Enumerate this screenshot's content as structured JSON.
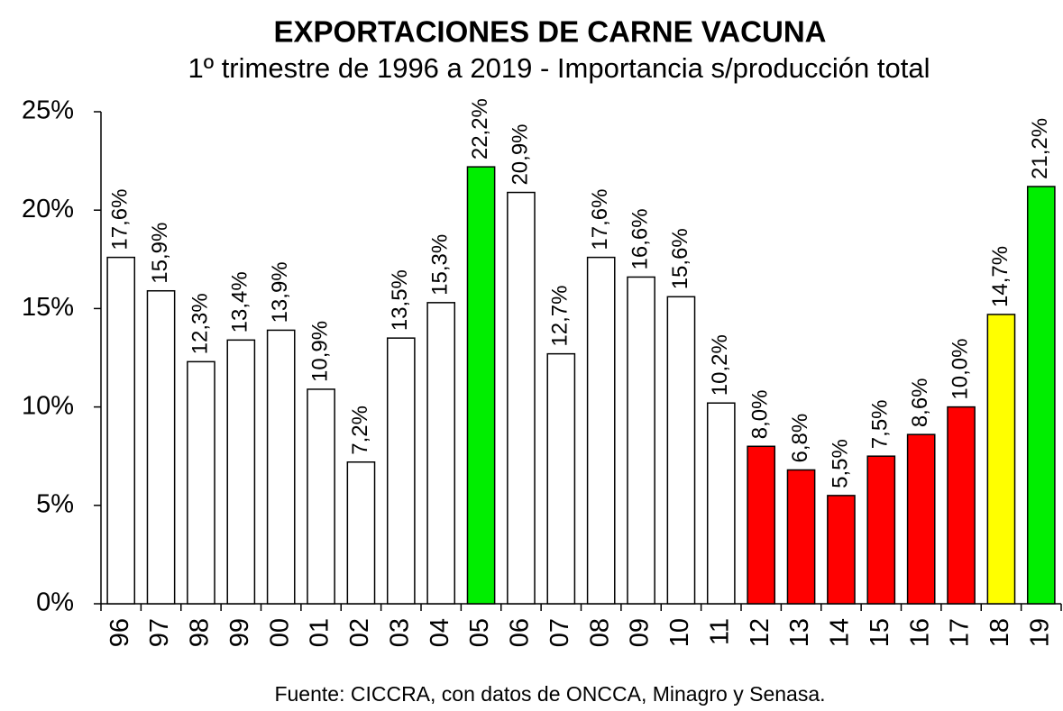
{
  "chart_data": {
    "type": "bar",
    "title": "EXPORTACIONES DE CARNE VACUNA",
    "subtitle": "1º trimestre de 1996 a 2019 - Importancia s/producción total",
    "source": "Fuente: CICCRA, con datos de ONCCA, Minagro y Senasa.",
    "categories": [
      "96",
      "97",
      "98",
      "99",
      "00",
      "01",
      "02",
      "03",
      "04",
      "05",
      "06",
      "07",
      "08",
      "09",
      "10",
      "11",
      "12",
      "13",
      "14",
      "15",
      "16",
      "17",
      "18",
      "19"
    ],
    "values": [
      17.6,
      15.9,
      12.3,
      13.4,
      13.9,
      10.9,
      7.2,
      13.5,
      15.3,
      22.2,
      20.9,
      12.7,
      17.6,
      16.6,
      15.6,
      10.2,
      8.0,
      6.8,
      5.5,
      7.5,
      8.6,
      10.0,
      14.7,
      21.2
    ],
    "value_labels": [
      "17,6%",
      "15,9%",
      "12,3%",
      "13,4%",
      "13,9%",
      "10,9%",
      "7,2%",
      "13,5%",
      "15,3%",
      "22,2%",
      "20,9%",
      "12,7%",
      "17,6%",
      "16,6%",
      "15,6%",
      "10,2%",
      "8,0%",
      "6,8%",
      "5,5%",
      "7,5%",
      "8,6%",
      "10,0%",
      "14,7%",
      "21,2%"
    ],
    "colors": [
      "#ffffff",
      "#ffffff",
      "#ffffff",
      "#ffffff",
      "#ffffff",
      "#ffffff",
      "#ffffff",
      "#ffffff",
      "#ffffff",
      "#00ee00",
      "#ffffff",
      "#ffffff",
      "#ffffff",
      "#ffffff",
      "#ffffff",
      "#ffffff",
      "#ff0000",
      "#ff0000",
      "#ff0000",
      "#ff0000",
      "#ff0000",
      "#ff0000",
      "#ffff00",
      "#00ee00"
    ],
    "ylim": [
      0,
      25
    ],
    "yticks": [
      {
        "value": 0,
        "label": "0%"
      },
      {
        "value": 5,
        "label": "5%"
      },
      {
        "value": 10,
        "label": "10%"
      },
      {
        "value": 15,
        "label": "15%"
      },
      {
        "value": 20,
        "label": "20%"
      },
      {
        "value": 25,
        "label": "25%"
      }
    ],
    "grid": false
  }
}
